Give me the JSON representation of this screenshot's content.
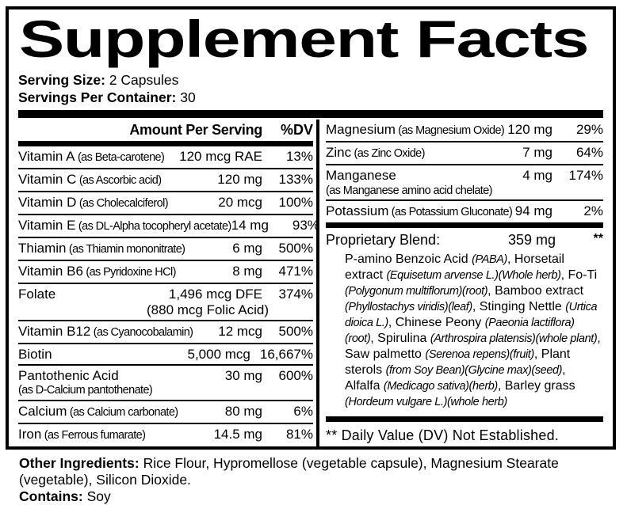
{
  "title": "Supplement Facts",
  "serving": {
    "size_label": "Serving Size:",
    "size_value": "2 Capsules",
    "container_label": "Servings Per Container:",
    "container_value": "30"
  },
  "table": {
    "header": {
      "amount": "Amount Per Serving",
      "dv": "%DV"
    },
    "left_rows": [
      {
        "name": "Vitamin A",
        "as": "(as Beta-carotene)",
        "amount": "120 mcg RAE",
        "dv": "13%"
      },
      {
        "name": "Vitamin C",
        "as": "(as Ascorbic acid)",
        "amount": "120 mg",
        "dv": "133%"
      },
      {
        "name": "Vitamin D",
        "as": "(as Cholecalciferol)",
        "amount": "20 mcg",
        "dv": "100%"
      },
      {
        "name": "Vitamin E",
        "as": "(as DL-Alpha tocopheryl acetate)",
        "amount": "14 mg",
        "dv": "93%"
      },
      {
        "name": "Thiamin",
        "as": "(as Thiamin mononitrate)",
        "amount": "6 mg",
        "dv": "500%"
      },
      {
        "name": "Vitamin B6",
        "as": "(as Pyridoxine HCl)",
        "amount": "8 mg",
        "dv": "471%"
      },
      {
        "name": "Folate",
        "amount": "1,496 mcg DFE",
        "amount2": "(880 mcg Folic Acid)",
        "dv": "374%"
      },
      {
        "name": "Vitamin B12",
        "as": "(as Cyanocobalamin)",
        "amount": "12 mcg",
        "dv": "500%"
      },
      {
        "name": "Biotin",
        "amount": "5,000 mcg",
        "dv": "16,667%"
      },
      {
        "name": "Pantothenic Acid",
        "as_below": "(as D-Calcium pantothenate)",
        "amount": "30 mg",
        "dv": "600%"
      },
      {
        "name": "Calcium",
        "as": "(as Calcium carbonate)",
        "amount": "80 mg",
        "dv": "6%"
      },
      {
        "name": "Iron",
        "as": "(as Ferrous fumarate)",
        "amount": "14.5 mg",
        "dv": "81%"
      }
    ],
    "right_rows": [
      {
        "name": "Magnesium",
        "as": "(as Magnesium Oxide)",
        "amount": "120 mg",
        "dv": "29%"
      },
      {
        "name": "Zinc",
        "as": "(as Zinc Oxide)",
        "amount": "7 mg",
        "dv": "64%"
      },
      {
        "name": "Manganese",
        "as_below": "(as Manganese amino acid chelate)",
        "amount": "4 mg",
        "dv": "174%"
      },
      {
        "name": "Potassium",
        "as": "(as Potassium Gluconate)",
        "amount": "94 mg",
        "dv": "2%"
      }
    ],
    "proprietary": {
      "name": "Proprietary Blend:",
      "amount": "359 mg",
      "dv": "**",
      "ingredients": [
        {
          "t": "P-amino Benzoic Acid ",
          "i": false
        },
        {
          "t": "(PABA)",
          "i": true
        },
        {
          "t": ", Horsetail extract ",
          "i": false
        },
        {
          "t": "(Equisetum arvense L.)(Whole herb)",
          "i": true
        },
        {
          "t": ", Fo-Ti ",
          "i": false
        },
        {
          "t": "(Polygonum multiflorum)(root)",
          "i": true
        },
        {
          "t": ", Bamboo extract ",
          "i": false
        },
        {
          "t": "(Phyllostachys viridis)(leaf)",
          "i": true
        },
        {
          "t": ", Stinging Nettle ",
          "i": false
        },
        {
          "t": "(Urtica dioica L.)",
          "i": true
        },
        {
          "t": ", Chinese Peony ",
          "i": false
        },
        {
          "t": "(Paeonia lactiflora)(root)",
          "i": true
        },
        {
          "t": ", Spirulina ",
          "i": false
        },
        {
          "t": "(Arthrospira platensis)(whole plant)",
          "i": true
        },
        {
          "t": ", Saw palmetto ",
          "i": false
        },
        {
          "t": "(Serenoa repens)(fruit)",
          "i": true
        },
        {
          "t": ", Plant sterols ",
          "i": false
        },
        {
          "t": "(from Soy Bean)(Glycine max)(seed)",
          "i": true
        },
        {
          "t": ", Alfalfa ",
          "i": false
        },
        {
          "t": "(Medicago sativa)(herb)",
          "i": true
        },
        {
          "t": ", Barley grass ",
          "i": false
        },
        {
          "t": "(Hordeum vulgare L.)(whole herb)",
          "i": true
        }
      ]
    },
    "footnote": "** Daily Value (DV) Not Established."
  },
  "footer": {
    "other_label": "Other Ingredients:",
    "other_value": "Rice Flour, Hypromellose (vegetable capsule), Magnesium Stearate (vegetable), Silicon Dioxide.",
    "contains_label": "Contains:",
    "contains_value": "Soy"
  },
  "colors": {
    "ink": "#000000",
    "paper": "#ffffff"
  }
}
